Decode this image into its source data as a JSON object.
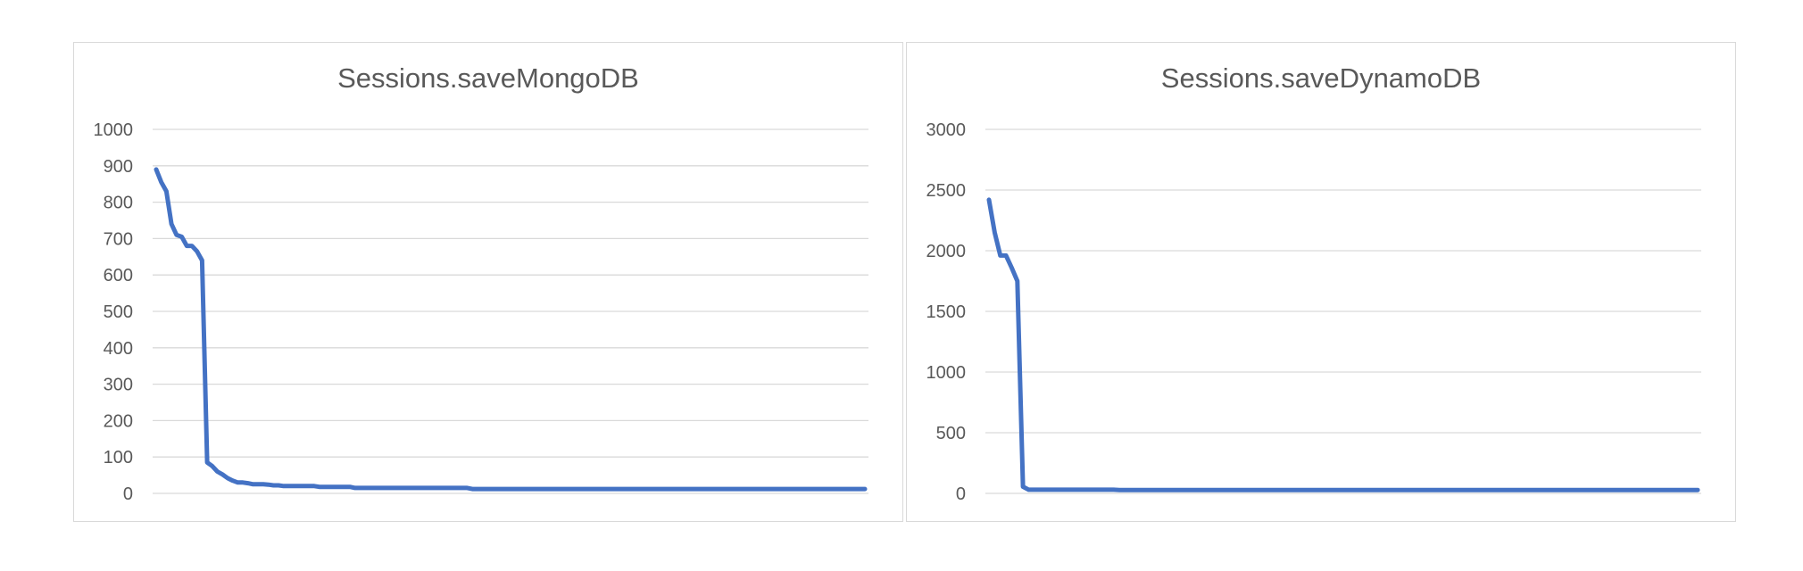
{
  "chart_data": [
    {
      "type": "line",
      "title": "Sessions.saveMongoDB",
      "xlabel": "",
      "ylabel": "",
      "ylim": [
        0,
        1000
      ],
      "yticks": [
        "0",
        "100",
        "200",
        "300",
        "400",
        "500",
        "600",
        "700",
        "800",
        "900",
        "1000"
      ],
      "grid": true,
      "color": "#4472C4",
      "series": [
        {
          "values": [
            890,
            855,
            830,
            740,
            710,
            705,
            680,
            680,
            665,
            640,
            85,
            75,
            60,
            52,
            42,
            35,
            30,
            30,
            28,
            25,
            25,
            25,
            24,
            22,
            22,
            20,
            20,
            20,
            20,
            20,
            20,
            20,
            18,
            18,
            18,
            18,
            18,
            18,
            18,
            15,
            15,
            15,
            15,
            15,
            15,
            15,
            15,
            15,
            15,
            15,
            15,
            15,
            15,
            15,
            15,
            15,
            15,
            15,
            15,
            15,
            15,
            15,
            12,
            12,
            12,
            12,
            12,
            12,
            12,
            12,
            12,
            12,
            12,
            12,
            12,
            12,
            12,
            12,
            12,
            12,
            12,
            12,
            12,
            12,
            12,
            12,
            12,
            12,
            12,
            12,
            12,
            12,
            12,
            12,
            12,
            12,
            12,
            12,
            12,
            12,
            12,
            12,
            12,
            12,
            12,
            12,
            12,
            12,
            12,
            12,
            12,
            12,
            12,
            12,
            12,
            12,
            12,
            12,
            12,
            12,
            12,
            12,
            12,
            12,
            12,
            12,
            12,
            12,
            12,
            12,
            12,
            12,
            12,
            12,
            12,
            12,
            12,
            12,
            12,
            12
          ]
        }
      ]
    },
    {
      "type": "line",
      "title": "Sessions.saveDynamoDB",
      "xlabel": "",
      "ylabel": "",
      "ylim": [
        0,
        3000
      ],
      "yticks": [
        "0",
        "500",
        "1000",
        "1500",
        "2000",
        "2500",
        "3000"
      ],
      "grid": true,
      "color": "#4472C4",
      "series": [
        {
          "values": [
            2420,
            2150,
            1960,
            1960,
            1860,
            1750,
            55,
            30,
            30,
            30,
            30,
            30,
            30,
            30,
            30,
            30,
            30,
            30,
            30,
            30,
            30,
            30,
            30,
            28,
            28,
            28,
            28,
            28,
            28,
            28,
            28,
            28,
            28,
            28,
            28,
            28,
            28,
            28,
            28,
            28,
            28,
            28,
            28,
            28,
            28,
            28,
            28,
            28,
            28,
            28,
            28,
            28,
            28,
            28,
            28,
            28,
            28,
            28,
            28,
            28,
            28,
            28,
            28,
            28,
            28,
            28,
            28,
            28,
            28,
            28,
            28,
            28,
            28,
            28,
            28,
            28,
            28,
            28,
            28,
            28,
            28,
            28,
            28,
            28,
            28,
            28,
            28,
            28,
            28,
            28,
            28,
            28,
            28,
            28,
            28,
            28,
            28,
            28,
            28,
            28,
            28,
            28,
            28,
            28,
            28,
            28,
            28,
            28,
            28,
            28,
            28,
            28,
            28,
            28,
            28,
            28,
            28,
            28,
            28,
            28,
            28,
            28,
            28,
            28,
            28,
            28
          ]
        }
      ]
    }
  ]
}
